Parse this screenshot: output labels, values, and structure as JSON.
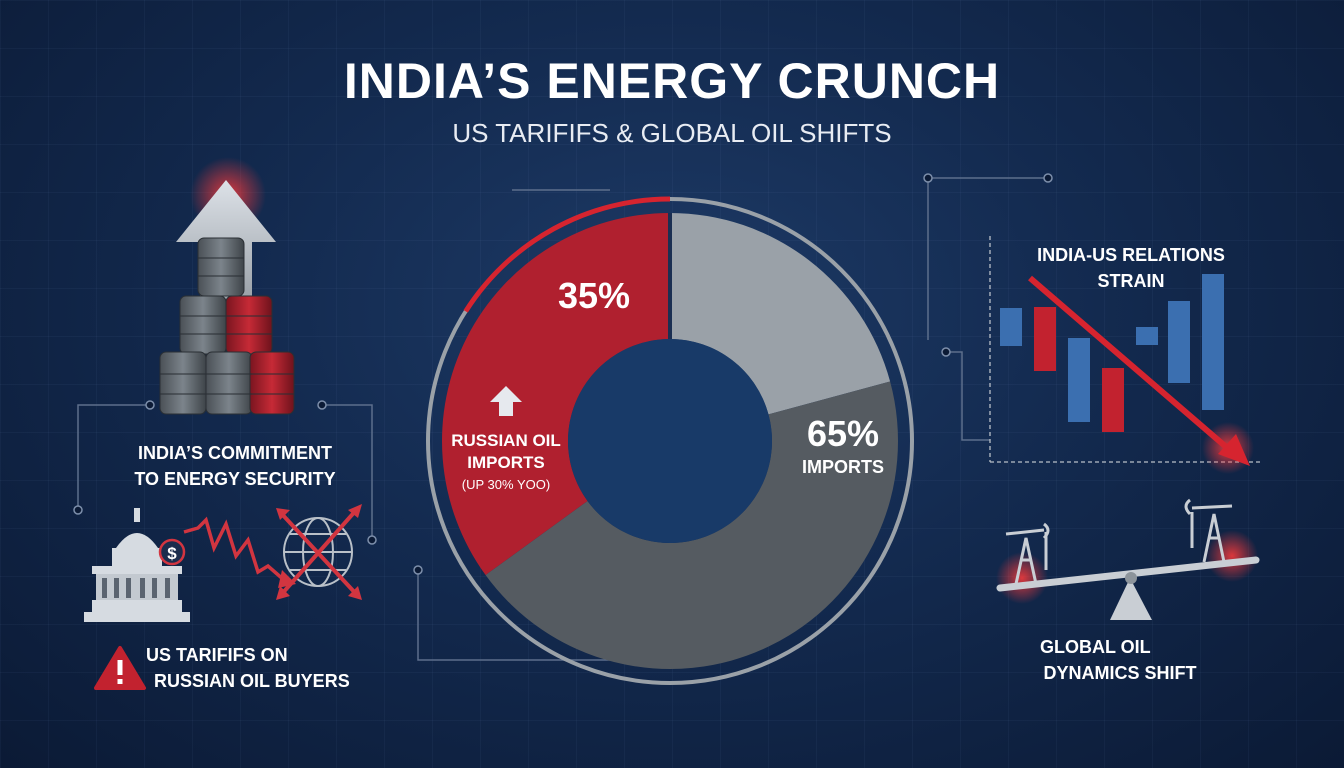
{
  "title": "INDIA’S ENERGY CRUNCH",
  "subtitle": "US TARIFIFS & GLOBAL OIL SHIFTS",
  "left_top": {
    "line1": "INDIA’S COMMITMENT",
    "line2": "TO ENERGY SECURITY"
  },
  "left_bottom": {
    "line1": "US TARIFIFS ON",
    "line2": "RUSSIAN OIL BUYERS"
  },
  "right_top": {
    "line1": "INDIA-US RELATIONS",
    "line2": "STRAIN"
  },
  "right_bottom": {
    "line1": "GLOBAL OIL",
    "line2": "DYNAMICS SHIFT"
  },
  "colors": {
    "russian": "#b0202f",
    "other_light": "#9aa1a8",
    "other_dark": "#555b61",
    "accent_blue": "#3b6fb0"
  },
  "icons": [
    "oil-barrels-icon",
    "up-arrow-icon",
    "capitol-icon",
    "dollar-icon",
    "zigzag-arrow-icon",
    "globe-icon",
    "warning-icon",
    "bar-chart-icon",
    "trend-down-arrow-icon",
    "oil-pump-icon",
    "seesaw-icon"
  ],
  "chart_data": {
    "type": "pie",
    "variant": "donut",
    "slices": [
      {
        "label": "RUSSIAN OIL IMPORTS",
        "value": 35,
        "display": "35%",
        "sublabel": "(UP 30% YOO)",
        "color": "#b0202f"
      },
      {
        "label": "IMPORTS",
        "value": 65,
        "display": "65%",
        "color": "#555b61"
      }
    ]
  }
}
